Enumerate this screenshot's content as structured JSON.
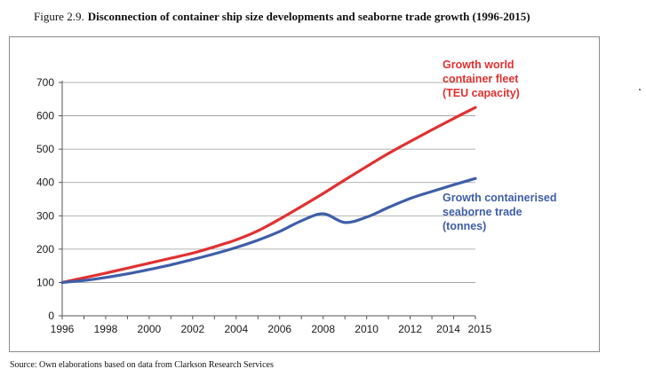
{
  "figure": {
    "number": "Figure 2.9.",
    "title": "Disconnection of container ship size developments and seaborne trade growth (1996-2015)",
    "source": "Source: Own elaborations based on data from Clarkson Research Services"
  },
  "chart_data": {
    "type": "line",
    "title": "",
    "xlabel": "",
    "ylabel": "",
    "xlim": [
      1996,
      2015
    ],
    "ylim": [
      0,
      700
    ],
    "x_ticks": [
      "1996",
      "1998",
      "2000",
      "2002",
      "2004",
      "2006",
      "2008",
      "2010",
      "2012",
      "2014",
      "2015"
    ],
    "x_tick_values": [
      1996,
      1998,
      2000,
      2002,
      2004,
      2006,
      2008,
      2010,
      2012,
      2014,
      2015
    ],
    "y_ticks": [
      "0",
      "100",
      "200",
      "300",
      "400",
      "500",
      "600",
      "700"
    ],
    "y_tick_values": [
      0,
      100,
      200,
      300,
      400,
      500,
      600,
      700
    ],
    "grid": "horizontal",
    "series": [
      {
        "name_lines": [
          "Growth world",
          "container fleet",
          "(TEU capacity)"
        ],
        "color": "#e03131",
        "x": [
          1996,
          1997,
          1998,
          1999,
          2000,
          2001,
          2002,
          2003,
          2004,
          2005,
          2006,
          2007,
          2008,
          2009,
          2010,
          2011,
          2012,
          2013,
          2014,
          2015
        ],
        "values": [
          100,
          114,
          128,
          143,
          158,
          173,
          188,
          207,
          228,
          255,
          290,
          328,
          367,
          408,
          448,
          487,
          523,
          558,
          592,
          625
        ]
      },
      {
        "name_lines": [
          "Growth containerised",
          "seaborne trade",
          "(tonnes)"
        ],
        "color": "#3f5ea8",
        "x": [
          1996,
          1997,
          1998,
          1999,
          2000,
          2001,
          2002,
          2003,
          2004,
          2005,
          2006,
          2007,
          2008,
          2009,
          2010,
          2011,
          2012,
          2013,
          2014,
          2015
        ],
        "values": [
          100,
          106,
          115,
          126,
          139,
          153,
          169,
          186,
          205,
          227,
          253,
          285,
          306,
          280,
          296,
          325,
          352,
          373,
          393,
          412
        ]
      }
    ]
  }
}
